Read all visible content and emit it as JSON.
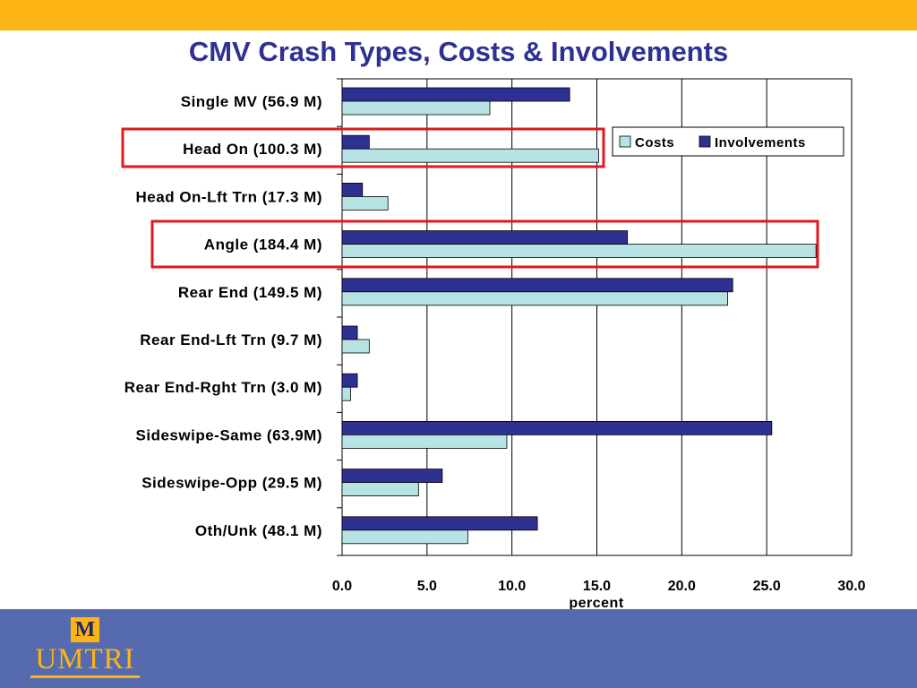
{
  "slide": {
    "title": "CMV Crash Types, Costs & Involvements",
    "logo_text": "UMTRI",
    "logo_mark": "M"
  },
  "colors": {
    "top_band": "#FDB515",
    "bottom_band": "#566BAE",
    "title": "#2E3192",
    "costs": "#B7E3E4",
    "involvements": "#2E3192",
    "highlight": "#E0191F"
  },
  "chart_data": {
    "type": "bar",
    "orientation": "horizontal",
    "categories": [
      "Single MV (56.9 M)",
      "Head On (100.3 M)",
      "Head On-Lft Trn (17.3 M)",
      "Angle (184.4 M)",
      "Rear End (149.5 M)",
      "Rear End-Lft Trn (9.7 M)",
      "Rear End-Rght Trn (3.0 M)",
      "Sideswipe-Same (63.9M)",
      "Sideswipe-Opp (29.5 M)",
      "Oth/Unk (48.1 M)"
    ],
    "series": [
      {
        "name": "Involvements",
        "values": [
          13.4,
          1.6,
          1.2,
          16.8,
          23.0,
          0.9,
          0.9,
          25.3,
          5.9,
          11.5
        ]
      },
      {
        "name": "Costs",
        "values": [
          8.7,
          15.1,
          2.7,
          27.9,
          22.7,
          1.6,
          0.5,
          9.7,
          4.5,
          7.4
        ]
      }
    ],
    "title": "CMV Crash Types, Costs & Involvements",
    "xlabel": "percent",
    "ylabel": "",
    "xlim": [
      0,
      30
    ],
    "xticks": [
      "0.0",
      "5.0",
      "10.0",
      "15.0",
      "20.0",
      "25.0",
      "30.0"
    ],
    "gridlines": "vertical",
    "legend": {
      "entries": [
        "Costs",
        "Involvements"
      ],
      "position": "upper-right"
    },
    "highlighted_categories": [
      "Head On (100.3 M)",
      "Angle (184.4 M)"
    ]
  }
}
